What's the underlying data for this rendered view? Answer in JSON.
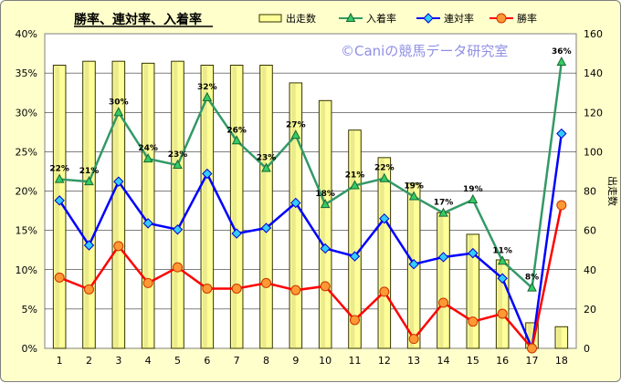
{
  "chart_data": {
    "type": "bar+line",
    "title": "勝率、連対率、入着率",
    "watermark": "©Caniの競馬データ研究室",
    "categories": [
      "1",
      "2",
      "3",
      "4",
      "5",
      "6",
      "7",
      "8",
      "9",
      "10",
      "11",
      "12",
      "13",
      "14",
      "15",
      "16",
      "17",
      "18"
    ],
    "y_left": {
      "min": 0,
      "max": 40,
      "step": 5,
      "format": "percent"
    },
    "y_right": {
      "min": 0,
      "max": 160,
      "step": 20,
      "label": "出走数"
    },
    "grid": true,
    "legend_position": "top",
    "bar_series": {
      "name": "出走数",
      "axis": "right",
      "color": "#ffff99",
      "values": [
        144,
        146,
        146,
        145,
        146,
        144,
        144,
        144,
        135,
        126,
        111,
        97,
        84,
        69,
        58,
        45,
        13,
        11
      ]
    },
    "line_series": [
      {
        "name": "入着率",
        "axis": "left",
        "color": "#339966",
        "marker": "triangle",
        "values": [
          21.5,
          21.2,
          30.0,
          24.1,
          23.3,
          31.9,
          26.4,
          22.9,
          27.1,
          18.3,
          20.7,
          21.6,
          19.3,
          17.2,
          18.9,
          11.1,
          7.7,
          36.4
        ],
        "labels": [
          "22%",
          "21%",
          "30%",
          "24%",
          "23%",
          "32%",
          "26%",
          "23%",
          "27%",
          "18%",
          "21%",
          "22%",
          "19%",
          "17%",
          "19%",
          "11%",
          "8%",
          "36%"
        ]
      },
      {
        "name": "連対率",
        "axis": "left",
        "color": "#0000ff",
        "marker": "diamond",
        "values": [
          18.8,
          13.1,
          21.2,
          15.9,
          15.1,
          22.2,
          14.6,
          15.3,
          18.5,
          12.7,
          11.7,
          16.5,
          10.7,
          11.6,
          12.1,
          8.9,
          0.0,
          27.3
        ]
      },
      {
        "name": "勝率",
        "axis": "left",
        "color": "#ff0000",
        "marker": "circle",
        "values": [
          9.0,
          7.5,
          13.0,
          8.3,
          10.3,
          7.6,
          7.6,
          8.3,
          7.4,
          7.9,
          3.6,
          7.2,
          1.2,
          5.8,
          3.4,
          4.4,
          0.0,
          18.2
        ]
      }
    ]
  }
}
